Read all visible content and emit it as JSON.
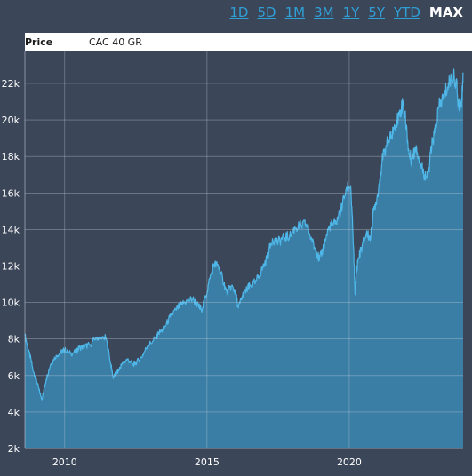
{
  "range_buttons": [
    {
      "label": "1D",
      "active": false
    },
    {
      "label": "5D",
      "active": false
    },
    {
      "label": "1M",
      "active": false
    },
    {
      "label": "3M",
      "active": false
    },
    {
      "label": "1Y",
      "active": false
    },
    {
      "label": "5Y",
      "active": false
    },
    {
      "label": "YTD",
      "active": false
    },
    {
      "label": "MAX",
      "active": true
    }
  ],
  "colors": {
    "background": "#3b4658",
    "plot_bg": "#3b4658",
    "area_fill": "#3a7ea6",
    "line": "#4fb7e8",
    "grid": "#c8ced8",
    "header_bg": "#ffffff",
    "accent": "#2f9fd6"
  },
  "chart_data": {
    "type": "area",
    "title": "Price",
    "series": [
      {
        "name": "CAC 40 GR",
        "x": [
          2008.6,
          2008.75,
          2008.9,
          2009.0,
          2009.1,
          2009.2,
          2009.35,
          2009.5,
          2009.7,
          2009.9,
          2010.0,
          2010.2,
          2010.4,
          2010.5,
          2010.7,
          2010.9,
          2011.1,
          2011.3,
          2011.45,
          2011.6,
          2011.7,
          2011.8,
          2011.9,
          2012.0,
          2012.2,
          2012.4,
          2012.5,
          2012.7,
          2012.9,
          2013.1,
          2013.3,
          2013.5,
          2013.7,
          2013.9,
          2014.1,
          2014.3,
          2014.5,
          2014.7,
          2014.8,
          2014.95,
          2015.1,
          2015.25,
          2015.4,
          2015.55,
          2015.7,
          2015.85,
          2016.0,
          2016.1,
          2016.25,
          2016.4,
          2016.5,
          2016.7,
          2016.9,
          2017.1,
          2017.3,
          2017.5,
          2017.7,
          2017.9,
          2018.1,
          2018.3,
          2018.5,
          2018.7,
          2018.85,
          2018.95,
          2019.1,
          2019.3,
          2019.5,
          2019.7,
          2019.9,
          2020.05,
          2020.15,
          2020.2,
          2020.25,
          2020.3,
          2020.45,
          2020.6,
          2020.75,
          2020.85,
          2021.0,
          2021.15,
          2021.3,
          2021.45,
          2021.6,
          2021.75,
          2021.9,
          2022.0,
          2022.1,
          2022.2,
          2022.35,
          2022.5,
          2022.65,
          2022.75,
          2022.9,
          2023.0,
          2023.15,
          2023.3,
          2023.45,
          2023.6,
          2023.75,
          2023.85,
          2023.95,
          2024.0
        ],
        "y": [
          8200,
          7300,
          6200,
          5800,
          5200,
          4700,
          5800,
          6600,
          7100,
          7300,
          7400,
          7200,
          7300,
          7500,
          7600,
          7700,
          8100,
          8000,
          8100,
          6800,
          5900,
          6100,
          6300,
          6600,
          6900,
          6600,
          6700,
          7000,
          7600,
          7900,
          8300,
          8600,
          9200,
          9600,
          9900,
          10100,
          10200,
          9800,
          9600,
          10300,
          11300,
          12100,
          12000,
          11300,
          10500,
          10900,
          10600,
          9700,
          10400,
          10700,
          10900,
          11100,
          11700,
          12400,
          13500,
          13300,
          13600,
          13600,
          14100,
          14200,
          14300,
          13300,
          12800,
          12300,
          13100,
          14200,
          14300,
          15000,
          16300,
          16400,
          13000,
          10500,
          11600,
          12300,
          13100,
          13800,
          13500,
          15000,
          15900,
          17700,
          18600,
          19000,
          19700,
          20300,
          21000,
          19700,
          18100,
          17800,
          18600,
          17600,
          17000,
          16800,
          18600,
          19300,
          20700,
          21200,
          21800,
          22400,
          22200,
          20600,
          21200,
          22600
        ]
      }
    ],
    "xlabel": "",
    "ylabel": "",
    "xlim": [
      2008.6,
      2024.0
    ],
    "ylim": [
      2000,
      23800
    ],
    "x_ticks": [
      2010,
      2015,
      2020
    ],
    "x_tick_labels": [
      "2010",
      "2015",
      "2020"
    ],
    "y_ticks": [
      2000,
      4000,
      6000,
      8000,
      10000,
      12000,
      14000,
      16000,
      18000,
      20000,
      22000
    ],
    "y_tick_labels": [
      "2k",
      "4k",
      "6k",
      "8k",
      "10k",
      "12k",
      "14k",
      "16k",
      "18k",
      "20k",
      "22k"
    ],
    "grid": true,
    "legend": "top-left"
  }
}
